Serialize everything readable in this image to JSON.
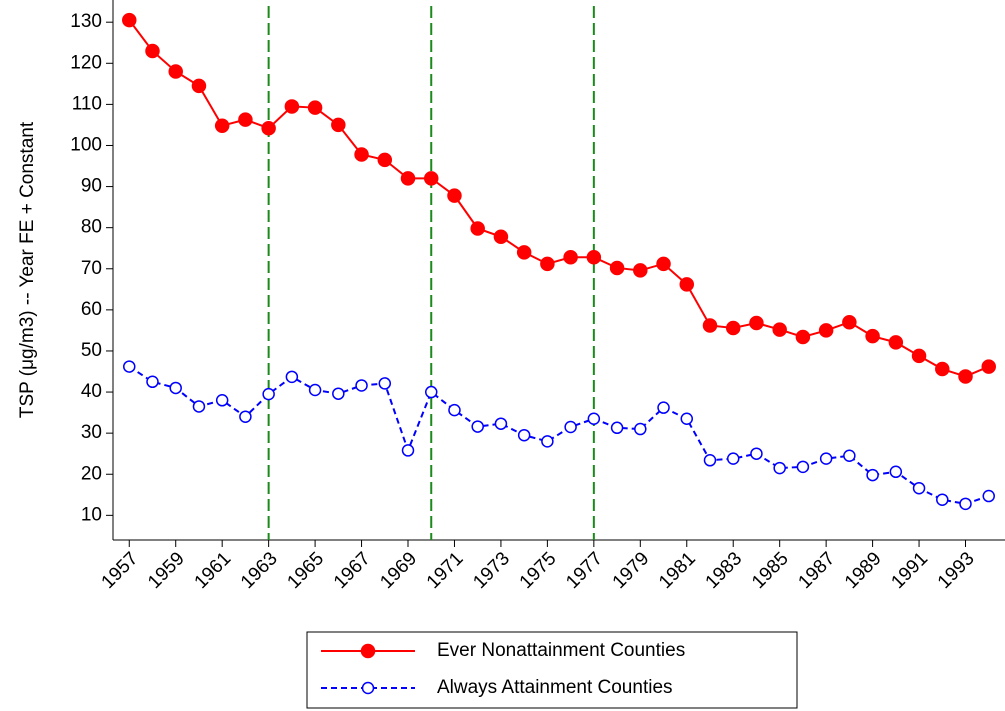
{
  "chart_data": {
    "type": "line",
    "y_label": "TSP (μg/m3) -- Year FE + Constant",
    "x": [
      1957,
      1958,
      1959,
      1960,
      1961,
      1962,
      1963,
      1964,
      1965,
      1966,
      1967,
      1968,
      1969,
      1970,
      1971,
      1972,
      1973,
      1974,
      1975,
      1976,
      1977,
      1978,
      1979,
      1980,
      1981,
      1982,
      1983,
      1984,
      1985,
      1986,
      1987,
      1988,
      1989,
      1990,
      1991,
      1992,
      1993,
      1994
    ],
    "series": [
      {
        "name": "Ever Nonattainment Counties",
        "color": "#ff0000",
        "linestyle": "solid",
        "marker": "filled",
        "values": [
          130.5,
          123,
          118,
          114.5,
          104.8,
          106.3,
          104.2,
          109.5,
          109.2,
          105,
          97.8,
          96.5,
          92,
          92,
          87.8,
          79.8,
          77.8,
          74,
          71.2,
          72.8,
          72.8,
          70.2,
          69.6,
          71.2,
          66.2,
          56.2,
          55.6,
          56.8,
          55.2,
          53.4,
          55,
          57,
          53.6,
          52.1,
          48.8,
          45.6,
          43.8,
          46.2
        ]
      },
      {
        "name": "Always Attainment Counties",
        "color": "#0000ff",
        "linestyle": "dashed",
        "marker": "hollow",
        "values": [
          46.2,
          42.5,
          41,
          36.5,
          38,
          34,
          39.5,
          43.7,
          40.5,
          39.6,
          41.6,
          42.1,
          25.8,
          40,
          35.6,
          31.6,
          32.3,
          29.5,
          28,
          31.5,
          33.5,
          31.3,
          31,
          36.2,
          33.5,
          23.4,
          23.8,
          25,
          21.5,
          21.8,
          23.8,
          24.5,
          19.8,
          20.6,
          16.6,
          13.8,
          12.8,
          14.7
        ]
      }
    ],
    "xlim": [
      1956.3,
      1994.7
    ],
    "xticks": [
      1957,
      1959,
      1961,
      1963,
      1965,
      1967,
      1969,
      1971,
      1973,
      1975,
      1977,
      1979,
      1981,
      1983,
      1985,
      1987,
      1989,
      1991,
      1993
    ],
    "ylim": [
      4,
      135.4
    ],
    "yticks": [
      10,
      20,
      30,
      40,
      50,
      60,
      70,
      80,
      90,
      100,
      110,
      120,
      130
    ],
    "vlines": [
      1963,
      1970,
      1977
    ],
    "vline_color": "#1a8a1a",
    "legend": "bottom"
  }
}
